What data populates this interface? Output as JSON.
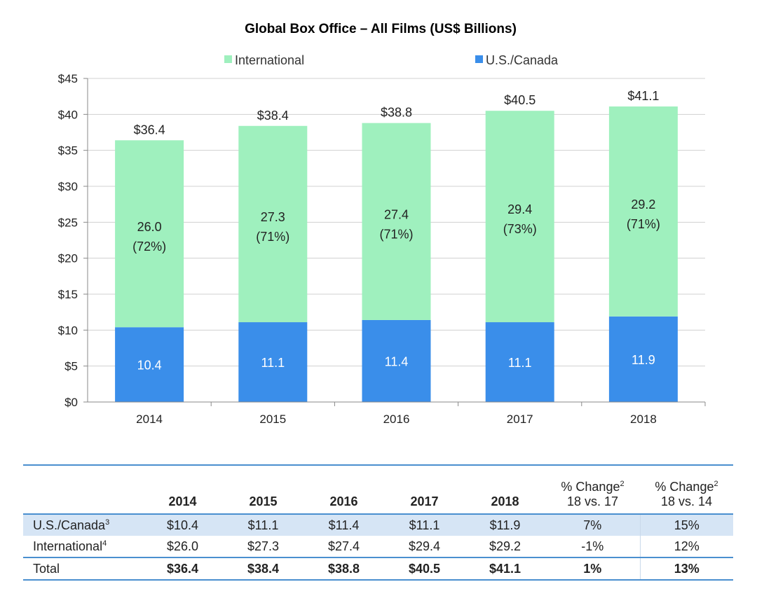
{
  "colors": {
    "international": "#9ff0be",
    "us_canada": "#3a8eea",
    "grid": "#d0d0d0",
    "axis": "#888888",
    "rule": "#4a8fcf",
    "highlight": "#d6e5f5"
  },
  "chart_data": {
    "type": "bar",
    "stacked": true,
    "title": "Global Box Office – All Films (US$ Billions)",
    "categories": [
      "2014",
      "2015",
      "2016",
      "2017",
      "2018"
    ],
    "series": [
      {
        "name": "U.S./Canada",
        "values": [
          10.4,
          11.1,
          11.4,
          11.1,
          11.9
        ],
        "labels": [
          "10.4",
          "11.1",
          "11.4",
          "11.1",
          "11.9"
        ]
      },
      {
        "name": "International",
        "values": [
          26.0,
          27.3,
          27.4,
          29.4,
          29.2
        ],
        "labels": [
          "26.0",
          "27.3",
          "27.4",
          "29.4",
          "29.2"
        ],
        "pct_labels": [
          "(72%)",
          "(71%)",
          "(71%)",
          "(73%)",
          "(71%)"
        ]
      }
    ],
    "totals": [
      "$36.4",
      "$38.4",
      "$38.8",
      "$40.5",
      "$41.1"
    ],
    "total_values": [
      36.4,
      38.4,
      38.8,
      40.5,
      41.1
    ],
    "legend": [
      "International",
      "U.S./Canada"
    ],
    "ylim": [
      0,
      45
    ],
    "yticks": [
      0,
      5,
      10,
      15,
      20,
      25,
      30,
      35,
      40,
      45
    ],
    "ytick_labels": [
      "$0",
      "$5",
      "$10",
      "$15",
      "$20",
      "$25",
      "$30",
      "$35",
      "$40",
      "$45"
    ],
    "grid": true
  },
  "table": {
    "headers": [
      "2014",
      "2015",
      "2016",
      "2017",
      "2018"
    ],
    "chg1": {
      "line1": "% Change",
      "sup": "2",
      "line2": "18 vs. 17"
    },
    "chg2": {
      "line1": "% Change",
      "sup": "2",
      "line2": "18 vs. 14"
    },
    "rows": [
      {
        "label": "U.S./Canada",
        "sup": "3",
        "cells": [
          "$10.4",
          "$11.1",
          "$11.4",
          "$11.1",
          "$11.9",
          "7%",
          "15%"
        ]
      },
      {
        "label": "International",
        "sup": "4",
        "cells": [
          "$26.0",
          "$27.3",
          "$27.4",
          "$29.4",
          "$29.2",
          "-1%",
          "12%"
        ]
      },
      {
        "label": "Total",
        "sup": "",
        "cells": [
          "$36.4",
          "$38.4",
          "$38.8",
          "$40.5",
          "$41.1",
          "1%",
          "13%"
        ]
      }
    ]
  }
}
